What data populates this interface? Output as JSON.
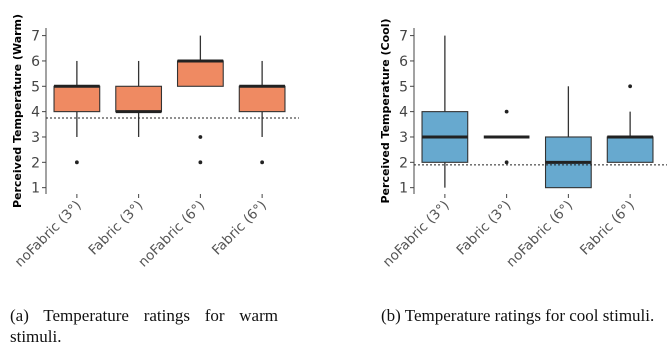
{
  "chart_data": [
    {
      "type": "box",
      "ylabel": "Perceived Temperature (Warm)",
      "ylim": [
        0.75,
        7.3
      ],
      "yticks": [
        1,
        2,
        3,
        4,
        5,
        6,
        7
      ],
      "categories": [
        "noFabric (3°)",
        "Fabric (3°)",
        "noFabric (6°)",
        "Fabric (6°)"
      ],
      "boxes": [
        {
          "q1": 4,
          "median": 5,
          "q3": 5,
          "whisker_low": 3,
          "whisker_high": 6,
          "outliers": [
            2
          ]
        },
        {
          "q1": 4,
          "median": 4,
          "q3": 5,
          "whisker_low": 3,
          "whisker_high": 6,
          "outliers": []
        },
        {
          "q1": 5,
          "median": 6,
          "q3": 6,
          "whisker_low": 5,
          "whisker_high": 7,
          "outliers": [
            3,
            2
          ]
        },
        {
          "q1": 4,
          "median": 5,
          "q3": 5,
          "whisker_low": 3,
          "whisker_high": 6,
          "outliers": [
            2
          ]
        }
      ],
      "reference_line": 3.75,
      "fill": "#ef8a62",
      "caption": "(a) Temperature ratings for warm stimuli."
    },
    {
      "type": "box",
      "ylabel": "Perceived Temperature (Cool)",
      "ylim": [
        0.75,
        7.3
      ],
      "yticks": [
        1,
        2,
        3,
        4,
        5,
        6,
        7
      ],
      "categories": [
        "noFabric (3°)",
        "Fabric (3°)",
        "noFabric (6°)",
        "Fabric (6°)"
      ],
      "boxes": [
        {
          "q1": 2,
          "median": 3,
          "q3": 4,
          "whisker_low": 1,
          "whisker_high": 7,
          "outliers": []
        },
        {
          "q1": 3,
          "median": 3,
          "q3": 3,
          "whisker_low": 3,
          "whisker_high": 3,
          "outliers": [
            4,
            2
          ]
        },
        {
          "q1": 1,
          "median": 2,
          "q3": 3,
          "whisker_low": 1,
          "whisker_high": 5,
          "outliers": []
        },
        {
          "q1": 2,
          "median": 3,
          "q3": 3,
          "whisker_low": 2,
          "whisker_high": 4,
          "outliers": [
            5
          ]
        }
      ],
      "reference_line": 1.9,
      "fill": "#67a9cf",
      "caption": "(b) Temperature ratings for cool stimuli."
    }
  ]
}
